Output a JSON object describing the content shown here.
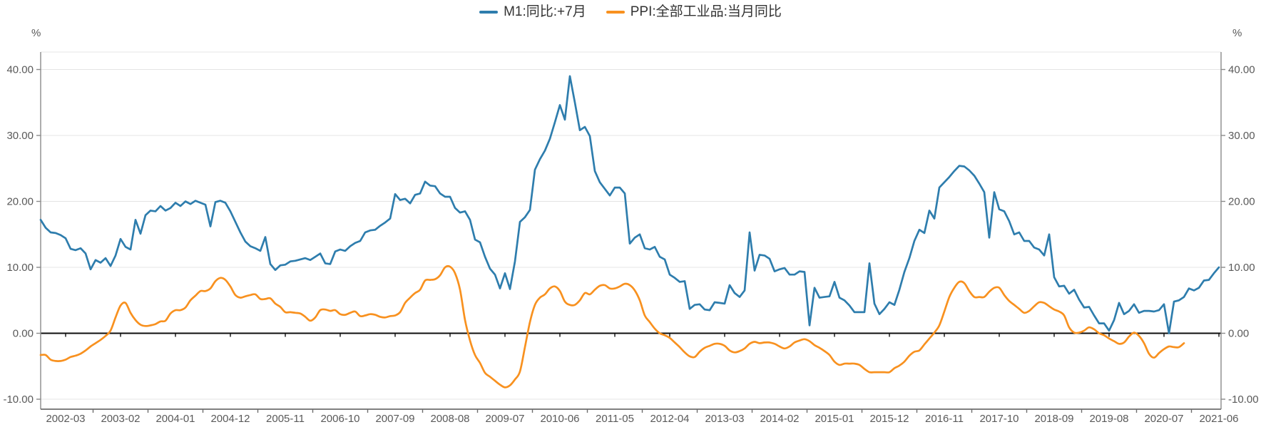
{
  "chart_data": {
    "type": "line",
    "title": "",
    "legend": [
      "M1:同比:+7月",
      "PPI:全部工业品:当月同比"
    ],
    "legend_position": "top-center",
    "grid": true,
    "zero_line": true,
    "y_axis": {
      "unit": "%",
      "ticks": [
        40,
        30,
        20,
        10,
        0,
        -10
      ],
      "tick_format": "0.00",
      "min": -11.6,
      "max": 42.6,
      "dual_axis": true
    },
    "x_axis": {
      "first_plotted_month": "2001-10",
      "months_per_label": 11,
      "first_label_offset_months": 5,
      "tick_labels": [
        "2002-03",
        "2003-02",
        "2004-01",
        "2004-12",
        "2005-11",
        "2006-10",
        "2007-09",
        "2008-08",
        "2009-07",
        "2010-06",
        "2011-05",
        "2012-04",
        "2013-03",
        "2014-02",
        "2015-01",
        "2015-12",
        "2016-11",
        "2017-10",
        "2018-09",
        "2019-08",
        "2020-07",
        "2021-06"
      ]
    },
    "series": [
      {
        "name": "M1:同比:+7月",
        "color": "#2e7dad",
        "start": "2001-10",
        "freq": "monthly",
        "smooth": false,
        "values": [
          17.2,
          16.0,
          15.3,
          15.2,
          14.9,
          14.4,
          12.8,
          12.6,
          12.9,
          12.1,
          9.7,
          11.1,
          10.7,
          11.4,
          10.2,
          11.8,
          14.3,
          13.1,
          12.7,
          17.2,
          15.1,
          17.9,
          18.6,
          18.5,
          19.3,
          18.6,
          19.0,
          19.8,
          19.3,
          20.0,
          19.6,
          20.1,
          19.8,
          19.5,
          16.2,
          19.9,
          20.1,
          19.8,
          18.5,
          16.9,
          15.3,
          13.9,
          13.2,
          12.9,
          12.5,
          14.6,
          10.5,
          9.6,
          10.3,
          10.4,
          10.9,
          11.0,
          11.2,
          11.4,
          11.1,
          11.6,
          12.1,
          10.6,
          10.5,
          12.4,
          12.7,
          12.5,
          13.2,
          13.7,
          14.0,
          15.3,
          15.6,
          15.7,
          16.3,
          16.8,
          17.4,
          21.1,
          20.2,
          20.4,
          19.7,
          21.0,
          21.2,
          23.0,
          22.4,
          22.3,
          21.2,
          20.7,
          20.7,
          19.0,
          18.3,
          18.5,
          17.2,
          14.2,
          13.8,
          11.6,
          9.8,
          8.9,
          6.8,
          9.1,
          6.7,
          10.9,
          16.9,
          17.6,
          18.7,
          24.8,
          26.4,
          27.7,
          29.5,
          32.0,
          34.6,
          32.4,
          39.0,
          35.0,
          30.8,
          31.3,
          29.9,
          24.6,
          22.9,
          21.9,
          20.9,
          22.1,
          22.1,
          21.2,
          13.6,
          14.5,
          15.0,
          12.9,
          12.7,
          13.1,
          11.6,
          11.2,
          8.9,
          8.4,
          7.8,
          7.9,
          3.7,
          4.3,
          4.4,
          3.6,
          3.5,
          4.7,
          4.6,
          4.5,
          7.3,
          6.1,
          5.5,
          6.5,
          15.3,
          9.5,
          11.9,
          11.8,
          11.3,
          9.4,
          9.7,
          9.9,
          8.9,
          8.9,
          9.4,
          9.3,
          1.2,
          6.9,
          5.4,
          5.5,
          5.6,
          7.8,
          5.4,
          5.0,
          4.2,
          3.2,
          3.2,
          3.2,
          10.6,
          4.5,
          2.9,
          3.7,
          4.7,
          4.3,
          6.6,
          9.3,
          11.4,
          14.0,
          15.7,
          15.2,
          18.6,
          17.4,
          22.1,
          22.9,
          23.7,
          24.6,
          25.4,
          25.3,
          24.7,
          23.9,
          22.7,
          21.4,
          14.5,
          21.4,
          18.8,
          18.5,
          17.0,
          15.0,
          15.3,
          14.0,
          14.0,
          13.0,
          12.7,
          11.8,
          15.0,
          8.5,
          7.1,
          7.2,
          6.0,
          6.6,
          5.1,
          3.9,
          4.0,
          2.7,
          1.5,
          1.5,
          0.4,
          2.0,
          4.6,
          2.9,
          3.4,
          4.4,
          3.1,
          3.4,
          3.4,
          3.3,
          3.5,
          4.4,
          0.0,
          4.8,
          5.0,
          5.5,
          6.8,
          6.5,
          6.9,
          8.0,
          8.1,
          9.1,
          10.0
        ]
      },
      {
        "name": "PPI:全部工业品:当月同比",
        "color": "#f8911f",
        "start": "2001-10",
        "freq": "monthly",
        "smooth": true,
        "values": [
          -3.3,
          -3.3,
          -4.0,
          -4.2,
          -4.2,
          -4.0,
          -3.6,
          -3.4,
          -3.1,
          -2.6,
          -2.0,
          -1.5,
          -1.0,
          -0.4,
          0.4,
          2.4,
          4.2,
          4.6,
          3.1,
          2.0,
          1.3,
          1.1,
          1.2,
          1.4,
          1.8,
          1.9,
          3.0,
          3.5,
          3.5,
          3.9,
          5.0,
          5.7,
          6.4,
          6.4,
          6.8,
          7.9,
          8.4,
          8.1,
          7.1,
          5.8,
          5.4,
          5.6,
          5.8,
          5.9,
          5.2,
          5.2,
          5.3,
          4.5,
          4.0,
          3.2,
          3.2,
          3.1,
          3.0,
          2.5,
          1.9,
          2.4,
          3.5,
          3.6,
          3.4,
          3.5,
          2.9,
          2.8,
          3.1,
          3.3,
          2.6,
          2.7,
          2.9,
          2.8,
          2.5,
          2.4,
          2.6,
          2.7,
          3.2,
          4.6,
          5.4,
          6.1,
          6.6,
          8.0,
          8.1,
          8.2,
          8.8,
          10.0,
          10.1,
          9.1,
          6.6,
          2.0,
          -1.1,
          -3.3,
          -4.5,
          -6.0,
          -6.6,
          -7.2,
          -7.8,
          -8.2,
          -7.9,
          -7.0,
          -5.8,
          -2.1,
          1.7,
          4.3,
          5.4,
          5.9,
          6.8,
          7.1,
          6.4,
          4.8,
          4.3,
          4.3,
          5.0,
          6.1,
          5.9,
          6.6,
          7.2,
          7.3,
          6.8,
          6.8,
          7.1,
          7.5,
          7.3,
          6.5,
          5.0,
          2.7,
          1.7,
          0.7,
          0.0,
          -0.3,
          -0.7,
          -1.4,
          -2.1,
          -2.9,
          -3.5,
          -3.6,
          -2.8,
          -2.2,
          -1.9,
          -1.6,
          -1.6,
          -1.9,
          -2.6,
          -2.9,
          -2.7,
          -2.3,
          -1.6,
          -1.3,
          -1.5,
          -1.4,
          -1.4,
          -1.6,
          -2.0,
          -2.3,
          -2.0,
          -1.4,
          -1.1,
          -0.9,
          -1.2,
          -1.8,
          -2.2,
          -2.7,
          -3.3,
          -4.3,
          -4.8,
          -4.6,
          -4.6,
          -4.6,
          -4.8,
          -5.4,
          -5.9,
          -5.9,
          -5.9,
          -5.9,
          -5.9,
          -5.3,
          -4.9,
          -4.3,
          -3.4,
          -2.8,
          -2.6,
          -1.7,
          -0.8,
          0.1,
          1.2,
          3.3,
          5.5,
          6.9,
          7.8,
          7.6,
          6.4,
          5.5,
          5.5,
          5.5,
          6.3,
          6.9,
          6.9,
          5.8,
          4.9,
          4.3,
          3.7,
          3.1,
          3.4,
          4.1,
          4.7,
          4.6,
          4.1,
          3.6,
          3.3,
          2.7,
          0.9,
          0.1,
          0.1,
          0.4,
          0.9,
          0.6,
          0.0,
          -0.3,
          -0.8,
          -1.2,
          -1.6,
          -1.4,
          -0.5,
          0.1,
          -0.4,
          -1.5,
          -3.1,
          -3.7,
          -3.0,
          -2.4,
          -2.0,
          -2.1,
          -2.1,
          -1.5
        ]
      }
    ],
    "colors": {
      "grid_line": "#e4e4e4",
      "zero_line": "#0d0d0d",
      "axis_line": "#8a8a8a",
      "bottom_axis_line": "#6e6e6e",
      "axis_text": "#595959",
      "legend_text": "#333333",
      "background": "#ffffff"
    }
  }
}
